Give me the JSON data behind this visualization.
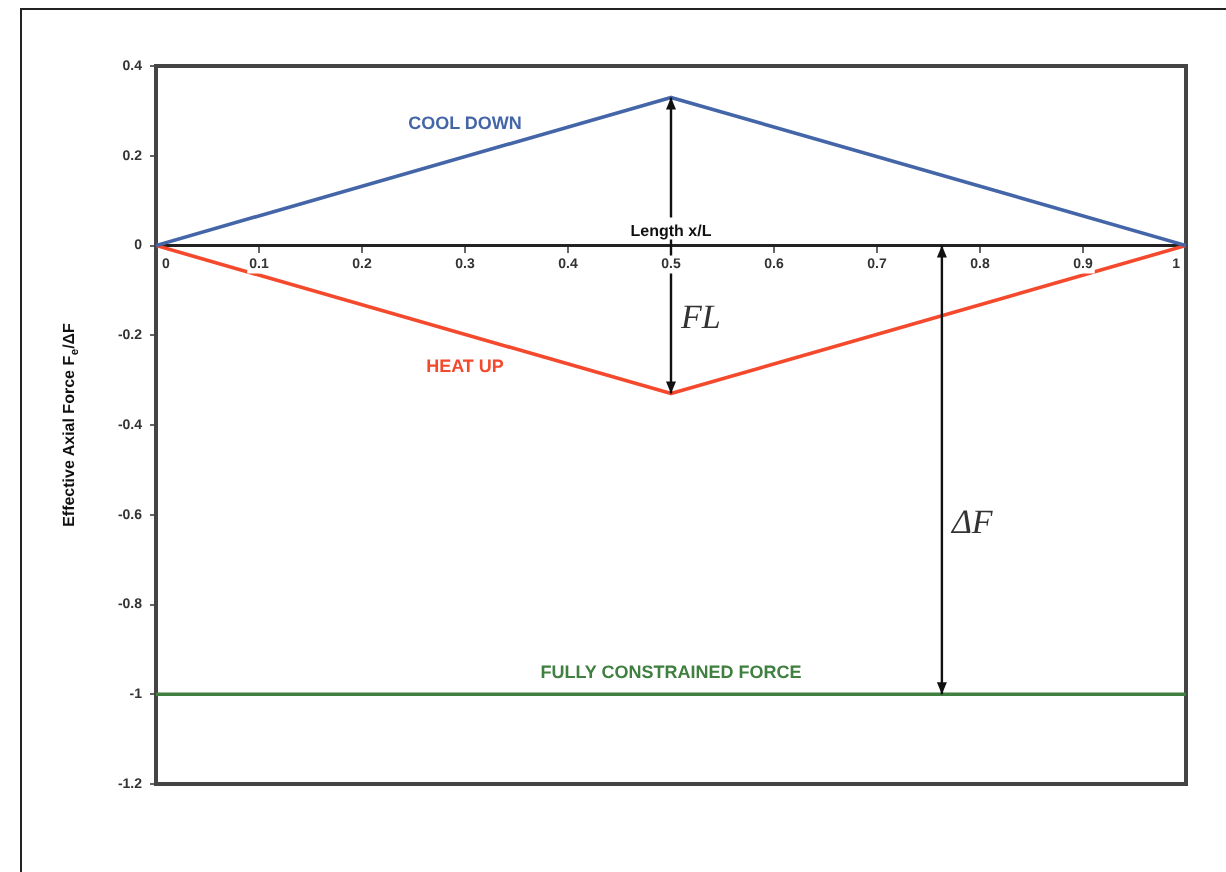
{
  "chart_data": {
    "type": "line",
    "xlabel": "Length x/L",
    "ylabel": "Effective Axial Force F$_{e}$/ΔF",
    "series": [
      {
        "name": "COOL DOWN",
        "color": "#4466a8",
        "x": [
          0,
          0.5,
          1
        ],
        "values": [
          0,
          0.33,
          0
        ]
      },
      {
        "name": "HEAT UP",
        "color": "#f4492c",
        "x": [
          0,
          0.5,
          1
        ],
        "values": [
          0,
          -0.33,
          0
        ]
      },
      {
        "name": "FULLY CONSTRAINED FORCE",
        "color": "#3f7f3f",
        "x": [
          0,
          1
        ],
        "values": [
          -1,
          -1
        ]
      }
    ],
    "xlim": [
      0,
      1
    ],
    "xticks": [
      0,
      0.1,
      0.2,
      0.3,
      0.4,
      0.5,
      0.6,
      0.7,
      0.8,
      0.9,
      1
    ],
    "ylim": [
      -1.2,
      0.4
    ],
    "yticks": [
      0.4,
      0.2,
      0,
      -0.2,
      -0.4,
      -0.6,
      -0.8,
      -1,
      -1.2
    ],
    "annotations": [
      "FL",
      "ΔF"
    ]
  }
}
